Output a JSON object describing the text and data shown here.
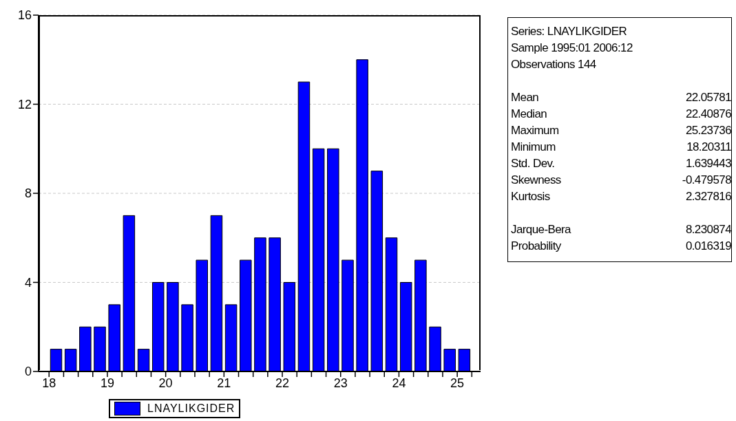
{
  "chart_data": [
    {
      "type": "histogram",
      "bins": [
        18,
        18.25,
        18.5,
        18.75,
        19,
        19.25,
        19.5,
        19.75,
        20,
        20.25,
        20.5,
        20.75,
        21,
        21.25,
        21.5,
        21.75,
        22,
        22.25,
        22.5,
        22.75,
        23,
        23.25,
        23.5,
        23.75,
        24,
        24.25,
        24.5,
        24.75,
        25,
        25.25
      ],
      "series": [
        {
          "name": "LNAYLIKGIDER",
          "color": "#0000ff",
          "values": [
            1,
            1,
            2,
            2,
            3,
            7,
            1,
            4,
            4,
            3,
            5,
            7,
            3,
            5,
            6,
            6,
            4,
            13,
            10,
            10,
            5,
            14,
            9,
            6,
            4,
            5,
            2,
            1,
            1
          ]
        }
      ],
      "xlim": [
        17.82,
        25.4
      ],
      "xticks": [
        18,
        {
          "value": 18.25,
          "label": null
        },
        {
          "value": 18.5,
          "label": null
        },
        {
          "value": 18.75,
          "label": null
        },
        19,
        {
          "value": 19.25,
          "label": null
        },
        {
          "value": 19.5,
          "label": null
        },
        {
          "value": 19.75,
          "label": null
        },
        20,
        {
          "value": 20.25,
          "label": null
        },
        {
          "value": 20.5,
          "label": null
        },
        {
          "value": 20.75,
          "label": null
        },
        21,
        {
          "value": 21.25,
          "label": null
        },
        {
          "value": 21.5,
          "label": null
        },
        {
          "value": 21.75,
          "label": null
        },
        22,
        {
          "value": 22.25,
          "label": null
        },
        {
          "value": 22.5,
          "label": null
        },
        {
          "value": 22.75,
          "label": null
        },
        23,
        {
          "value": 23.25,
          "label": null
        },
        {
          "value": 23.5,
          "label": null
        },
        {
          "value": 23.75,
          "label": null
        },
        24,
        {
          "value": 24.25,
          "label": null
        },
        {
          "value": 24.5,
          "label": null
        },
        {
          "value": 24.75,
          "label": null
        },
        25,
        {
          "value": 25.25,
          "label": null
        }
      ],
      "ylim": [
        0,
        16
      ],
      "yticks": [
        0,
        4,
        8,
        12,
        16
      ],
      "grid": "y",
      "legend": "bottom"
    },
    {
      "type": "other",
      "annotations": [
        "Series: LNAYLIKGIDER",
        "Sample 1995:01 2006:12",
        "Observations 144"
      ],
      "categories": [
        "Mean",
        "Median",
        "Maximum",
        "Minimum",
        "Std. Dev.",
        "Skewness",
        "Kurtosis",
        "Jarque-Bera",
        "Probability"
      ],
      "values": [
        22.05781,
        22.40876,
        25.23736,
        18.20311,
        1.639443,
        -0.479578,
        2.327816,
        8.230874,
        0.016319
      ],
      "data_labels": true
    }
  ]
}
